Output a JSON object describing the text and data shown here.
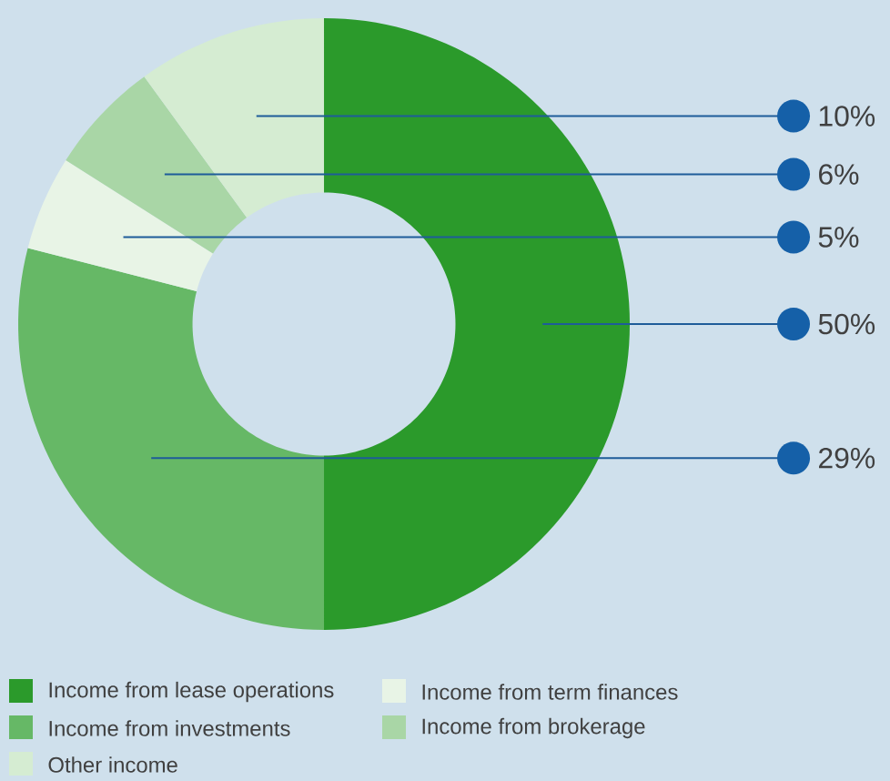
{
  "chart_data": {
    "type": "donut",
    "categories": [
      "Income from lease operations",
      "Income from investments",
      "Income from term finances",
      "Income from brokerage",
      "Other income"
    ],
    "values": [
      50,
      29,
      5,
      6,
      10
    ],
    "colors": [
      "#2b9a2b",
      "#66b866",
      "#e8f4e6",
      "#a9d6a6",
      "#d5ecd2"
    ],
    "value_labels": [
      "50%",
      "29%",
      "5%",
      "6%",
      "10%"
    ],
    "legend": "bottom"
  }
}
